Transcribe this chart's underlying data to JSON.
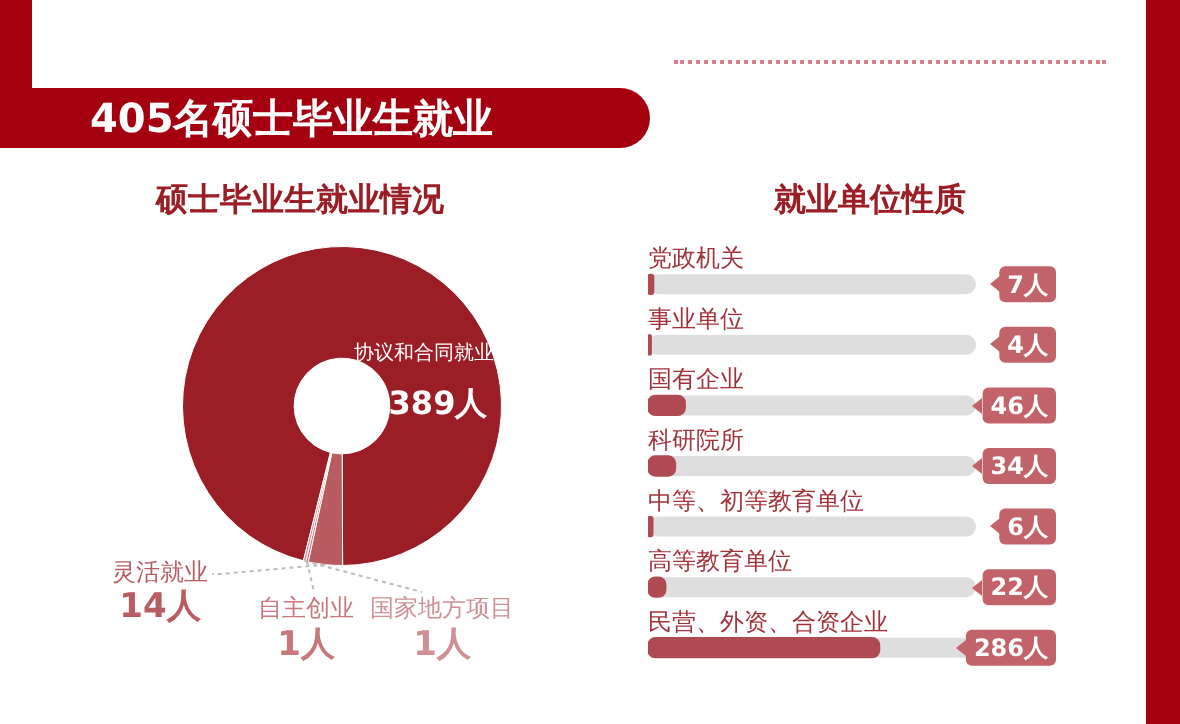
{
  "chart_data": [
    {
      "type": "other",
      "title": "405名硕士毕业生就业"
    },
    {
      "type": "donut",
      "title": "硕士毕业生就业情况",
      "categories": [
        "协议和合同就业",
        "灵活就业",
        "自主创业",
        "国家地方项目"
      ],
      "values": [
        389,
        14,
        1,
        1
      ],
      "colors": [
        "#9b1d25",
        "#b95c62",
        "#c7787d",
        "#cf9095"
      ],
      "value_labels": [
        "389人",
        "14人",
        "1人",
        "1人"
      ]
    },
    {
      "type": "bar",
      "orientation": "horizontal",
      "title": "就业单位性质",
      "categories": [
        "党政机关",
        "事业单位",
        "国有企业",
        "科研院所",
        "中等、初等教育单位",
        "高等教育单位",
        "民营、外资、合资企业"
      ],
      "values": [
        7,
        4,
        46,
        34,
        6,
        22,
        286
      ],
      "color": "#b04a52",
      "xlim": [
        0,
        405
      ],
      "value_labels": [
        "7人",
        "4人",
        "46人",
        "34人",
        "6人",
        "22人",
        "286人"
      ],
      "tick_labels": "y"
    }
  ]
}
